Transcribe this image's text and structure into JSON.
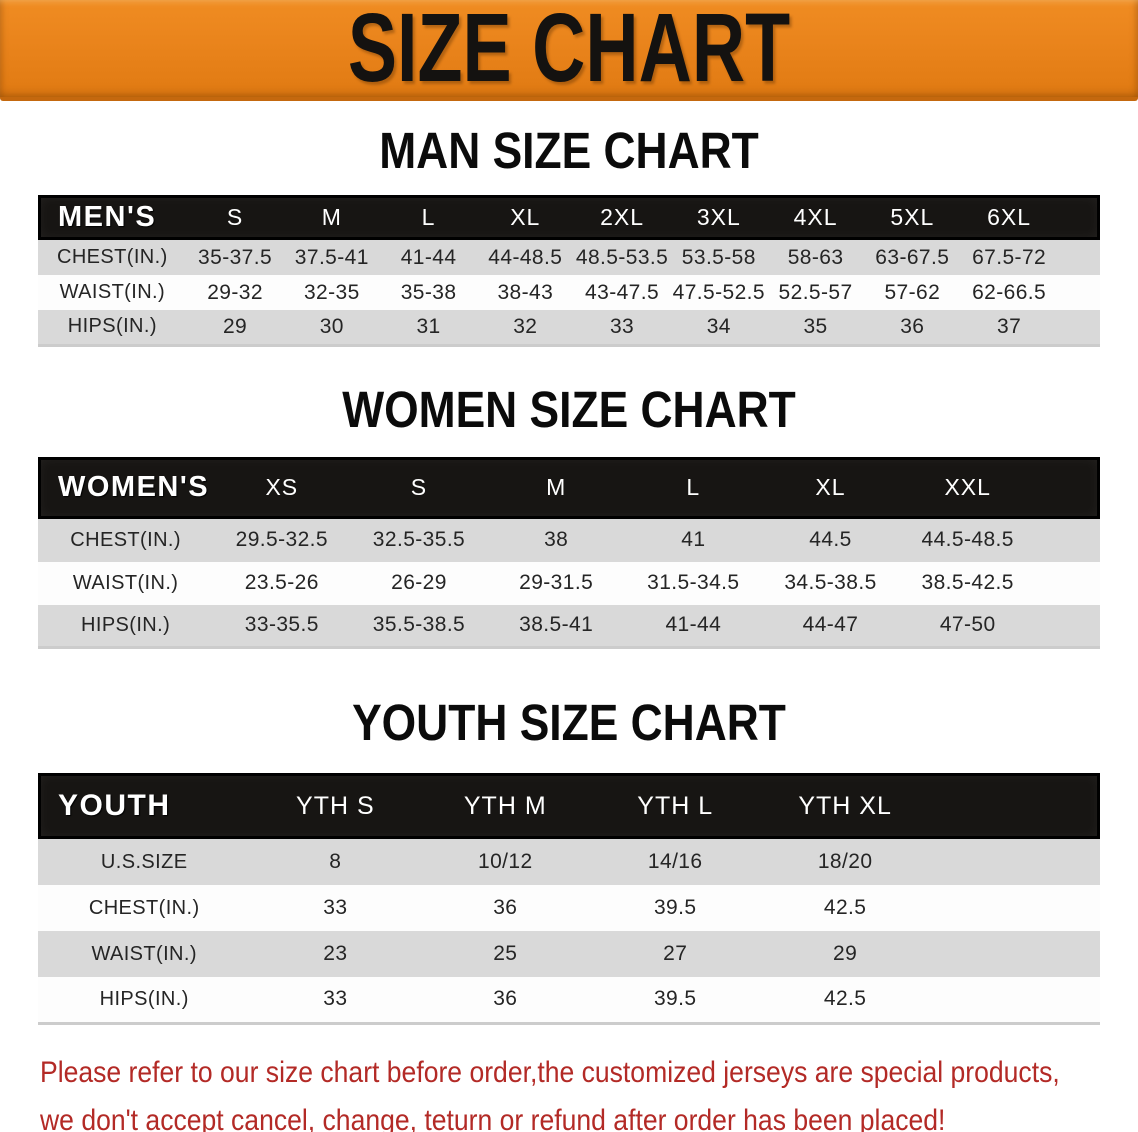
{
  "banner": {
    "title": "SIZE CHART",
    "bg_color": "#e8821a",
    "text_color": "#141210"
  },
  "sections": [
    {
      "heading": "MAN SIZE CHART",
      "header_label": "MEN'S",
      "columns": [
        "S",
        "M",
        "L",
        "XL",
        "2XL",
        "3XL",
        "4XL",
        "5XL",
        "6XL"
      ],
      "rows": [
        {
          "label": "CHEST(IN.)",
          "values": [
            "35-37.5",
            "37.5-41",
            "41-44",
            "44-48.5",
            "48.5-53.5",
            "53.5-58",
            "58-63",
            "63-67.5",
            "67.5-72"
          ]
        },
        {
          "label": "WAIST(IN.)",
          "values": [
            "29-32",
            "32-35",
            "35-38",
            "38-43",
            "43-47.5",
            "47.5-52.5",
            "52.5-57",
            "57-62",
            "62-66.5"
          ]
        },
        {
          "label": "HIPS(IN.)",
          "values": [
            "29",
            "30",
            "31",
            "32",
            "33",
            "34",
            "35",
            "36",
            "37"
          ]
        }
      ]
    },
    {
      "heading": "WOMEN SIZE CHART",
      "header_label": "WOMEN'S",
      "columns": [
        "XS",
        "S",
        "M",
        "L",
        "XL",
        "XXL"
      ],
      "rows": [
        {
          "label": "CHEST(IN.)",
          "values": [
            "29.5-32.5",
            "32.5-35.5",
            "38",
            "41",
            "44.5",
            "44.5-48.5"
          ]
        },
        {
          "label": "WAIST(IN.)",
          "values": [
            "23.5-26",
            "26-29",
            "29-31.5",
            "31.5-34.5",
            "34.5-38.5",
            "38.5-42.5"
          ]
        },
        {
          "label": "HIPS(IN.)",
          "values": [
            "33-35.5",
            "35.5-38.5",
            "38.5-41",
            "41-44",
            "44-47",
            "47-50"
          ]
        }
      ]
    },
    {
      "heading": "YOUTH SIZE CHART",
      "header_label": "YOUTH",
      "columns": [
        "YTH S",
        "YTH M",
        "YTH L",
        "YTH XL"
      ],
      "rows": [
        {
          "label": "U.S.SIZE",
          "values": [
            "8",
            "10/12",
            "14/16",
            "18/20"
          ]
        },
        {
          "label": "CHEST(IN.)",
          "values": [
            "33",
            "36",
            "39.5",
            "42.5"
          ]
        },
        {
          "label": "WAIST(IN.)",
          "values": [
            "23",
            "25",
            "27",
            "29"
          ]
        },
        {
          "label": "HIPS(IN.)",
          "values": [
            "33",
            "36",
            "39.5",
            "42.5"
          ]
        }
      ]
    }
  ],
  "disclaimer": {
    "line1": "Please refer to our size chart before order,the customized jerseys are special products,",
    "line2": "we don't accept cancel, change, teturn or refund after order has been placed!",
    "color": "#b32a26"
  },
  "row_stripe_colors": {
    "odd": "#d9d9d9",
    "even": "#fdfdfd"
  },
  "header_bar_color": "#171513"
}
